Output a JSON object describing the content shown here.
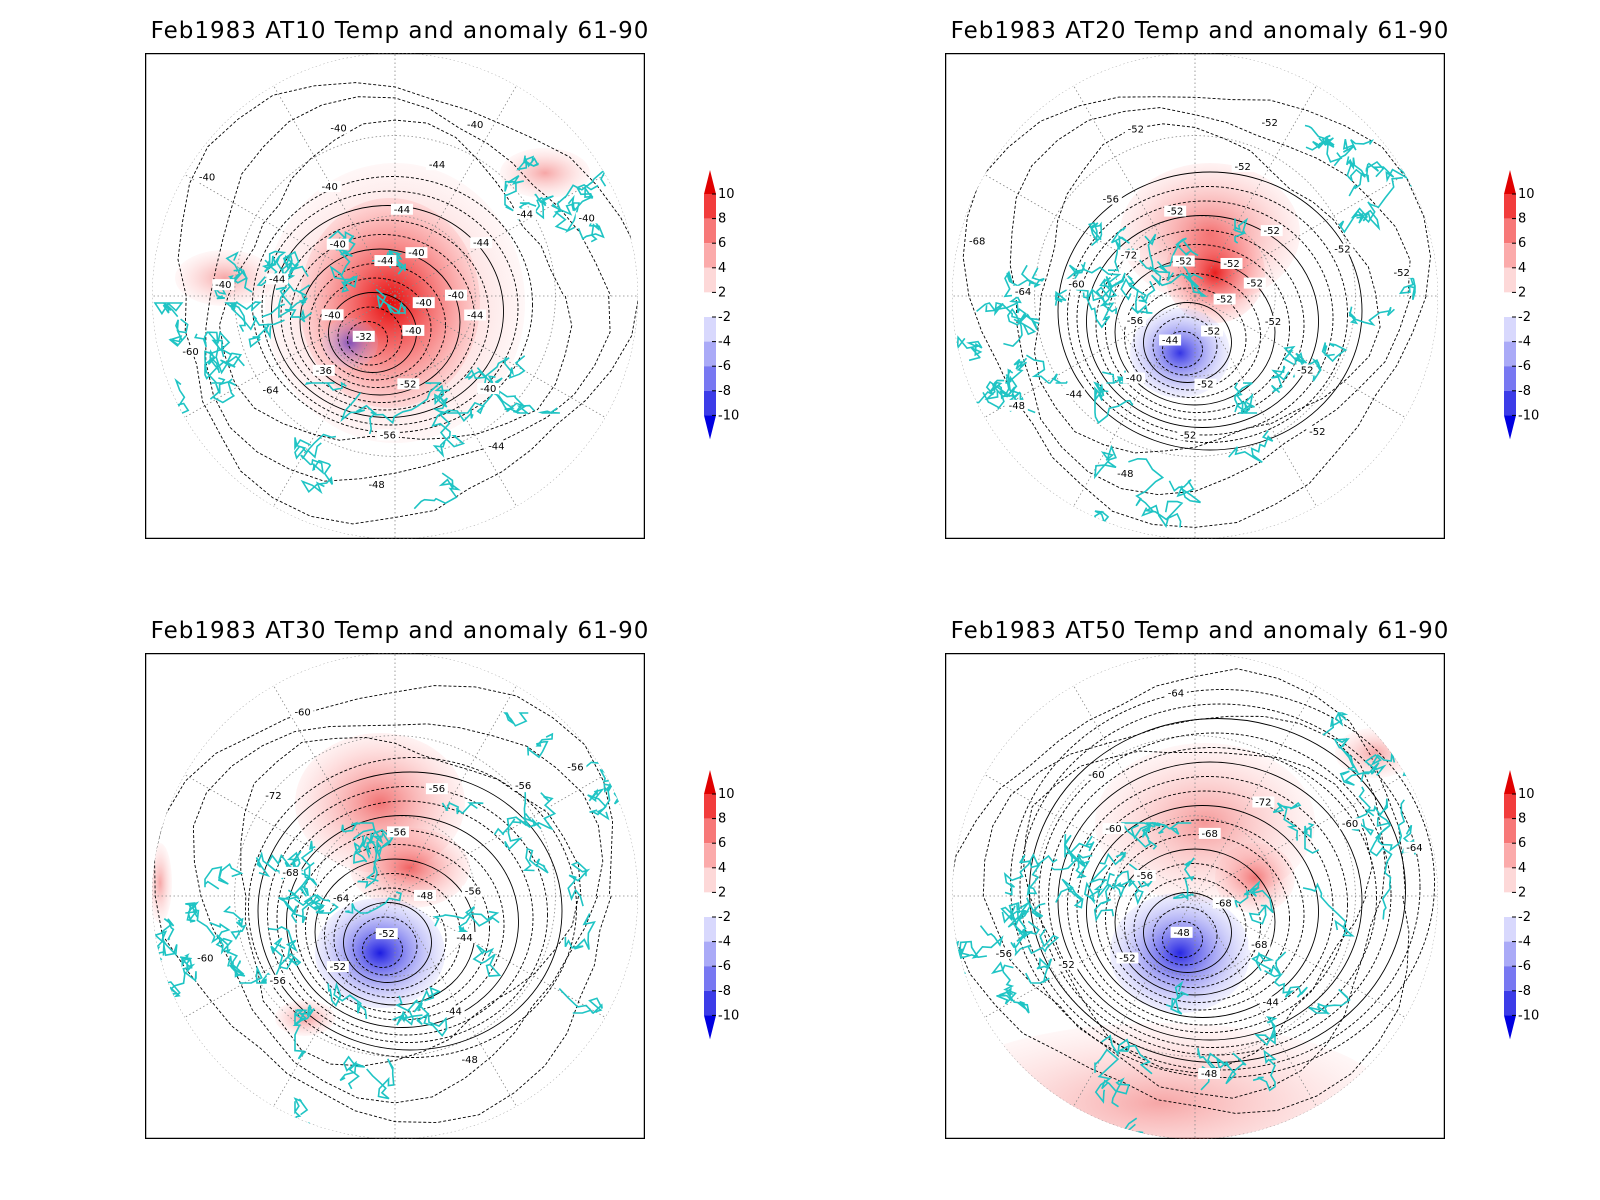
{
  "panels": [
    {
      "title": "Feb1983 AT10 Temp and anomaly 61-90",
      "contour_labels": [
        "-40",
        "-44",
        "-40",
        "-44",
        "-40",
        "-52",
        "-56",
        "-48",
        "-32",
        "-36",
        "-64",
        "-60",
        "-40",
        "-44",
        "-40",
        "-40",
        "-40",
        "-40",
        "-40",
        "-44",
        "-44",
        "-44",
        "-40",
        "-40",
        "-44",
        "-44",
        "-40",
        "-40"
      ]
    },
    {
      "title": "Feb1983 AT20 Temp and anomaly 61-90",
      "contour_labels": [
        "-52",
        "-52",
        "-52",
        "-52",
        "-52",
        "-52",
        "-52",
        "-48",
        "-44",
        "-40",
        "-44",
        "-48",
        "-56",
        "-60",
        "-64",
        "-68",
        "-72",
        "-56",
        "-52",
        "-52",
        "-52",
        "-52",
        "-52",
        "-52",
        "-52",
        "-52",
        "-52",
        "-52"
      ]
    },
    {
      "title": "Feb1983 AT30 Temp and anomaly 61-90",
      "contour_labels": [
        "-48",
        "-44",
        "-44",
        "-48",
        "-52",
        "-52",
        "-56",
        "-60",
        "-64",
        "-68",
        "-72",
        "-60",
        "-56",
        "-56",
        "-56",
        "-56",
        "-56"
      ]
    },
    {
      "title": "Feb1983 AT50 Temp and anomaly 61-90",
      "contour_labels": [
        "-68",
        "-68",
        "-44",
        "-48",
        "-48",
        "-52",
        "-52",
        "-56",
        "-56",
        "-60",
        "-60",
        "-64",
        "-68",
        "-72",
        "-60",
        "-64"
      ]
    }
  ],
  "colorbar": {
    "labels": [
      "10",
      "8",
      "6",
      "4",
      "2",
      "-2",
      "-4",
      "-6",
      "-8",
      "-10"
    ],
    "colors": [
      "#e00000",
      "#f23c3c",
      "#f77878",
      "#fbaaaa",
      "#fdd8d8",
      "#ffffff",
      "#d8d8fd",
      "#aaaaf7",
      "#7878f2",
      "#3c3ce8",
      "#0000e0"
    ]
  }
}
